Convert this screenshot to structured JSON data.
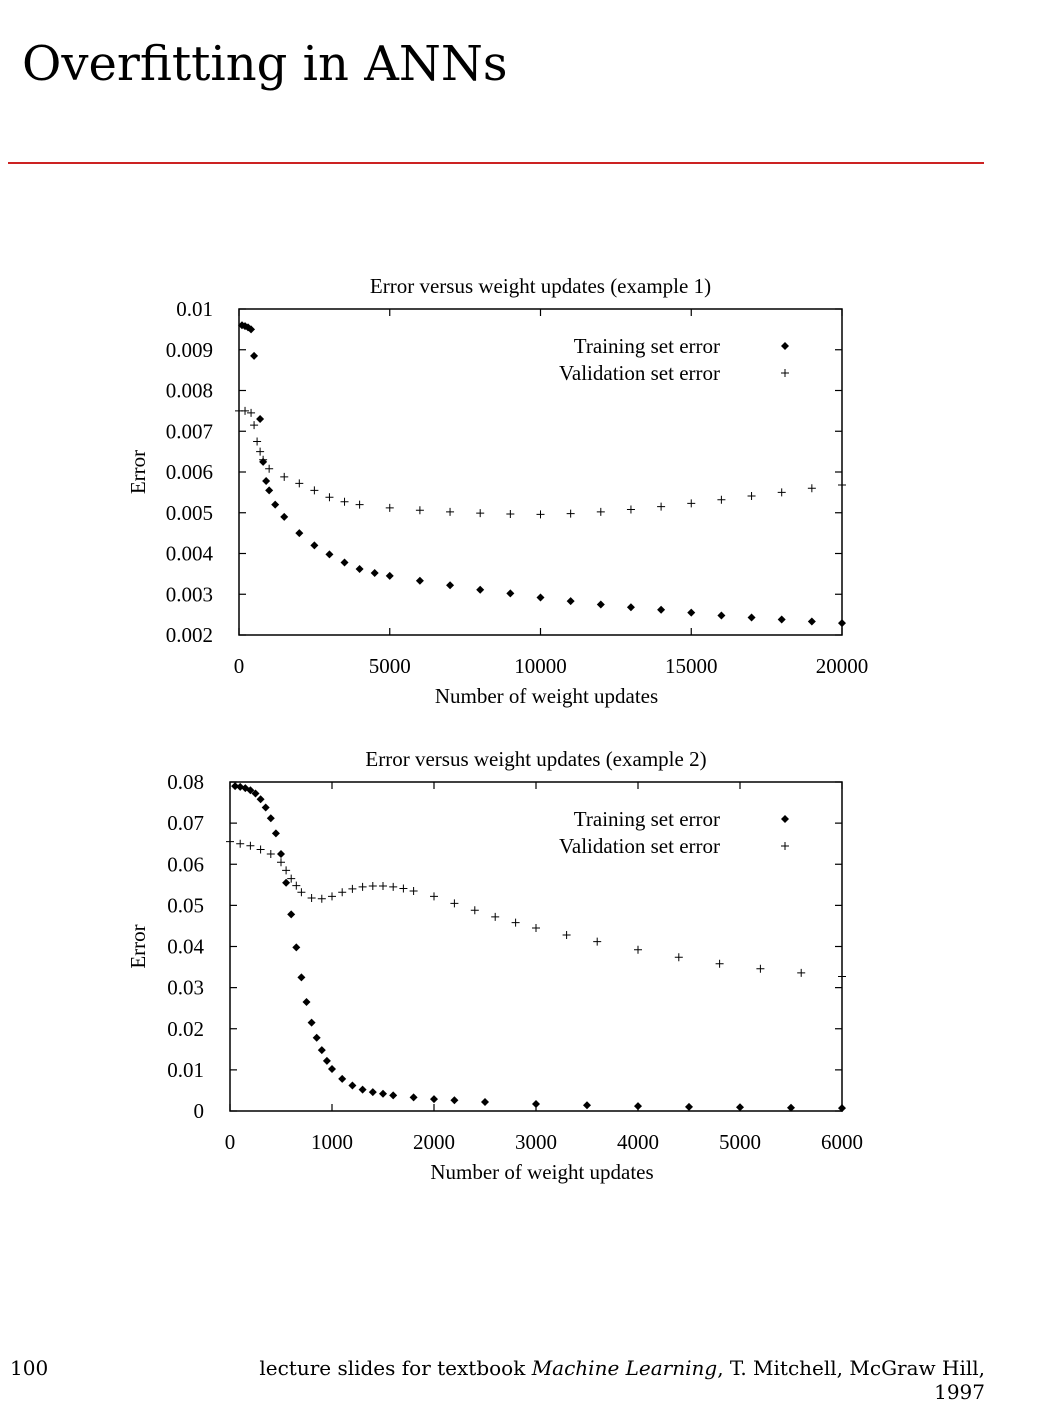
{
  "slide": {
    "title": "Overfitting in ANNs",
    "rule_color": "#cc2222",
    "page_number": "100",
    "footer": {
      "prefix": "lecture slides for textbook ",
      "book": "Machine Learning",
      "suffix": ", T. Mitchell, McGraw Hill, 1997"
    }
  },
  "chart_data": [
    {
      "type": "scatter",
      "title": "Error versus weight updates (example 1)",
      "xlabel": "Number of weight updates",
      "ylabel": "Error",
      "xlim": [
        0,
        20000
      ],
      "ylim": [
        0.002,
        0.01
      ],
      "xticks": [
        "0",
        "5000",
        "10000",
        "15000",
        "20000"
      ],
      "yticks": [
        "0.002",
        "0.003",
        "0.004",
        "0.005",
        "0.006",
        "0.007",
        "0.008",
        "0.009",
        "0.01"
      ],
      "grid": false,
      "legend_position": "top-right",
      "series": [
        {
          "name": "Training set error",
          "marker": "diamond",
          "x": [
            100,
            200,
            300,
            400,
            500,
            700,
            800,
            900,
            1000,
            1200,
            1500,
            2000,
            2500,
            3000,
            3500,
            4000,
            4500,
            5000,
            6000,
            7000,
            8000,
            9000,
            10000,
            11000,
            12000,
            13000,
            14000,
            15000,
            16000,
            17000,
            18000,
            19000,
            20000
          ],
          "y": [
            0.0096,
            0.00958,
            0.00955,
            0.0095,
            0.00885,
            0.0073,
            0.00625,
            0.00578,
            0.00555,
            0.0052,
            0.0049,
            0.0045,
            0.0042,
            0.00398,
            0.00378,
            0.00362,
            0.00352,
            0.00345,
            0.00333,
            0.00322,
            0.00311,
            0.00302,
            0.00292,
            0.00283,
            0.00275,
            0.00268,
            0.00262,
            0.00255,
            0.00248,
            0.00243,
            0.00238,
            0.00233,
            0.00229
          ]
        },
        {
          "name": "Validation set error",
          "marker": "plus",
          "x": [
            0,
            200,
            400,
            500,
            600,
            700,
            800,
            1000,
            1500,
            2000,
            2500,
            3000,
            3500,
            4000,
            5000,
            6000,
            7000,
            8000,
            9000,
            10000,
            11000,
            12000,
            13000,
            14000,
            15000,
            16000,
            17000,
            18000,
            19000,
            20000
          ],
          "y": [
            0.0075,
            0.0075,
            0.00745,
            0.00715,
            0.00675,
            0.0065,
            0.0063,
            0.00608,
            0.00588,
            0.00572,
            0.00555,
            0.00538,
            0.00527,
            0.0052,
            0.00512,
            0.00506,
            0.00502,
            0.00499,
            0.00497,
            0.00496,
            0.00498,
            0.00502,
            0.00508,
            0.00515,
            0.00523,
            0.00532,
            0.00541,
            0.0055,
            0.0056,
            0.00568
          ]
        }
      ]
    },
    {
      "type": "scatter",
      "title": "Error versus weight updates (example 2)",
      "xlabel": "Number of weight updates",
      "ylabel": "Error",
      "xlim": [
        0,
        6000
      ],
      "ylim": [
        0,
        0.08
      ],
      "xticks": [
        "0",
        "1000",
        "2000",
        "3000",
        "4000",
        "5000",
        "6000"
      ],
      "yticks": [
        "0",
        "0.01",
        "0.02",
        "0.03",
        "0.04",
        "0.05",
        "0.06",
        "0.07",
        "0.08"
      ],
      "grid": false,
      "legend_position": "top-right",
      "series": [
        {
          "name": "Training set error",
          "marker": "diamond",
          "x": [
            50,
            100,
            150,
            200,
            250,
            300,
            350,
            400,
            450,
            500,
            550,
            600,
            650,
            700,
            750,
            800,
            850,
            900,
            950,
            1000,
            1100,
            1200,
            1300,
            1400,
            1500,
            1600,
            1800,
            2000,
            2200,
            2500,
            3000,
            3500,
            4000,
            4500,
            5000,
            5500,
            6000
          ],
          "y": [
            0.079,
            0.0788,
            0.0785,
            0.078,
            0.0772,
            0.0758,
            0.0738,
            0.0712,
            0.0675,
            0.0625,
            0.0555,
            0.0478,
            0.0398,
            0.0325,
            0.0265,
            0.0215,
            0.0178,
            0.0148,
            0.0122,
            0.0102,
            0.0078,
            0.0062,
            0.0052,
            0.0046,
            0.0042,
            0.0038,
            0.0033,
            0.0029,
            0.0026,
            0.0022,
            0.0017,
            0.0014,
            0.0012,
            0.001,
            0.0009,
            0.0008,
            0.0007
          ]
        },
        {
          "name": "Validation set error",
          "marker": "plus",
          "x": [
            0,
            100,
            200,
            300,
            400,
            500,
            550,
            600,
            650,
            700,
            800,
            900,
            1000,
            1100,
            1200,
            1300,
            1400,
            1500,
            1600,
            1700,
            1800,
            2000,
            2200,
            2400,
            2600,
            2800,
            3000,
            3300,
            3600,
            4000,
            4400,
            4800,
            5200,
            5600,
            6000
          ],
          "y": [
            0.0655,
            0.065,
            0.0645,
            0.0636,
            0.0625,
            0.0605,
            0.0585,
            0.0565,
            0.0548,
            0.0532,
            0.0518,
            0.0516,
            0.0522,
            0.0532,
            0.054,
            0.0545,
            0.0547,
            0.0547,
            0.0545,
            0.0541,
            0.0535,
            0.0522,
            0.0505,
            0.0488,
            0.0472,
            0.0458,
            0.0445,
            0.0428,
            0.0412,
            0.0392,
            0.0374,
            0.0358,
            0.0346,
            0.0336,
            0.0327
          ]
        }
      ]
    }
  ]
}
